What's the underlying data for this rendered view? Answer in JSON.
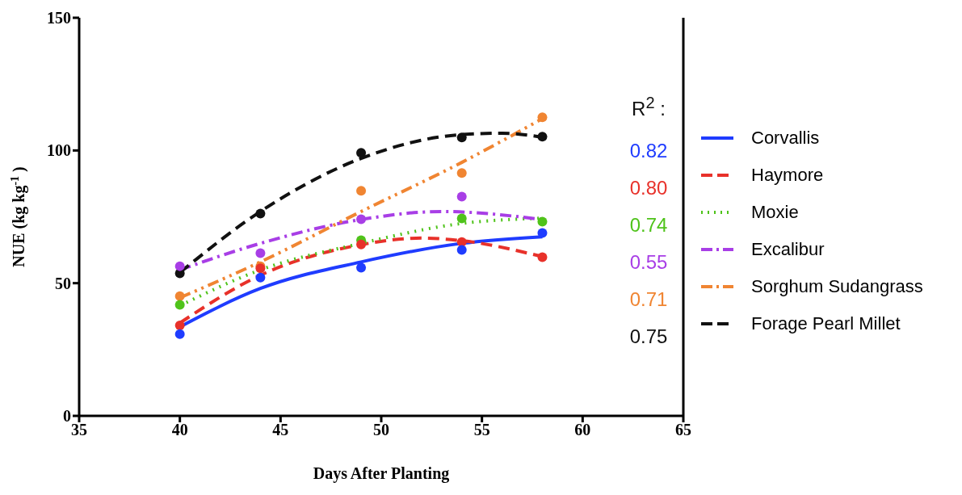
{
  "chart_data": {
    "type": "scatter",
    "xlabel": "Days After Planting",
    "ylabel": "NUE (kg kg$^{-1}$)",
    "xlim": [
      35,
      65
    ],
    "xticks": [
      35,
      40,
      45,
      50,
      55,
      60,
      65
    ],
    "ylim": [
      0,
      150
    ],
    "yticks": [
      0,
      50,
      100,
      150
    ],
    "grid": false,
    "legend": "right",
    "marker": "circle",
    "annotations": [
      "R$^{2}$ :",
      "0.82",
      "0.80",
      "0.74",
      "0.55",
      "0.71",
      "0.75"
    ],
    "series": [
      {
        "type": "line",
        "name": "Corvallis",
        "color": "#1f3cff",
        "line_style": "solid",
        "marker": "none",
        "x": [
          40,
          44,
          49,
          54,
          58
        ],
        "values": [
          33.5,
          48,
          58,
          65,
          67.5
        ]
      },
      {
        "type": "line",
        "name": "Haymore",
        "color": "#e8312a",
        "line_style": "dashed",
        "marker": "none",
        "x": [
          40,
          44,
          49,
          52,
          54,
          58
        ],
        "values": [
          35,
          53,
          64.5,
          67,
          66,
          60
        ]
      },
      {
        "type": "line",
        "name": "Moxie",
        "color": "#4fc31a",
        "line_style": "dotted",
        "marker": "none",
        "x": [
          40,
          44,
          49,
          54,
          58
        ],
        "values": [
          41.5,
          55,
          65,
          72.5,
          74.5
        ]
      },
      {
        "type": "line",
        "name": "Excalibur",
        "color": "#a83ee6",
        "line_style": "dashdot",
        "marker": "none",
        "x": [
          40,
          44,
          49,
          53,
          58
        ],
        "values": [
          55,
          65,
          74,
          77,
          74
        ]
      },
      {
        "type": "line",
        "name": "Sorghum Sudangrass",
        "color": "#f08532",
        "line_style": "dashdotdot",
        "marker": "none",
        "x": [
          40,
          44,
          49,
          54,
          58
        ],
        "values": [
          44.5,
          58,
          77,
          95.5,
          112
        ]
      },
      {
        "type": "line",
        "name": "Forage Pearl Millet",
        "color": "#111111",
        "line_style": "dashed",
        "marker": "none",
        "x": [
          40,
          44,
          49,
          54,
          56,
          58
        ],
        "values": [
          54,
          77,
          97,
          106,
          106.5,
          105
        ]
      },
      {
        "color": "#111111",
        "x": [
          40,
          44,
          49,
          54,
          58
        ],
        "values": [
          53.7,
          76.2,
          99.1,
          104.9,
          105.2
        ]
      },
      {
        "color": "#f08532",
        "x": [
          40,
          44,
          49,
          54,
          58
        ],
        "values": [
          45.1,
          56.4,
          84.8,
          91.5,
          112.5
        ]
      },
      {
        "color": "#a83ee6",
        "x": [
          40,
          44,
          49,
          54
        ],
        "values": [
          56.4,
          61.3,
          74.1,
          82.6
        ]
      },
      {
        "color": "#4fc31a",
        "x": [
          40,
          49,
          54,
          58
        ],
        "values": [
          41.8,
          66.2,
          74.4,
          73.2
        ]
      },
      {
        "color": "#e8312a",
        "x": [
          40,
          44,
          49,
          54,
          58
        ],
        "values": [
          34.1,
          55.6,
          64.6,
          65.5,
          59.8
        ]
      },
      {
        "color": "#1f3cff",
        "x": [
          40,
          44,
          49,
          54,
          58
        ],
        "values": [
          30.8,
          52.1,
          55.8,
          62.5,
          68.9
        ]
      }
    ]
  }
}
